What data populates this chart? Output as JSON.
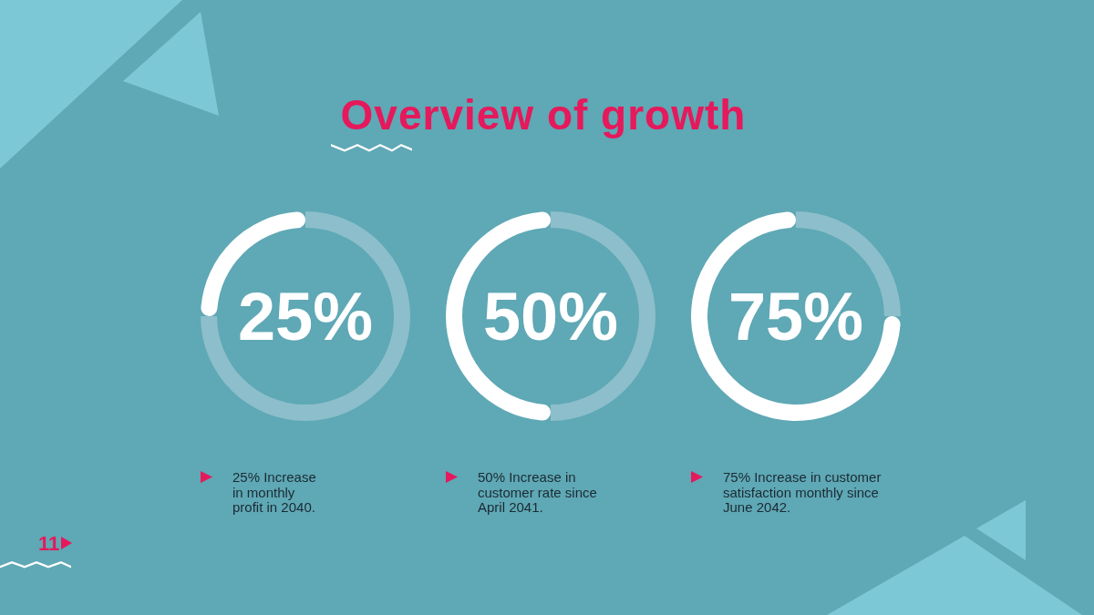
{
  "chart_data": [
    {
      "type": "donut",
      "title": "Overview of growth",
      "categories": [
        null,
        null
      ],
      "values": [
        25,
        75
      ],
      "colors": [
        "#ffffff",
        "#8cbfcb"
      ],
      "annotations": [
        "25%",
        "25% Increase in monthly profit in 2040.",
        "11"
      ]
    },
    {
      "type": "donut",
      "categories": [
        null,
        null
      ],
      "values": [
        50,
        50
      ],
      "colors": [
        "#ffffff",
        "#8cbfcb"
      ],
      "annotations": [
        "50%",
        "50% Increase in customer rate since April 2041."
      ]
    },
    {
      "type": "donut",
      "categories": [
        null,
        null
      ],
      "values": [
        75,
        25
      ],
      "colors": [
        "#ffffff",
        "#8cbfcb"
      ],
      "annotations": [
        "75%",
        "75% Increase in customer satisfaction monthly since June 2042."
      ]
    }
  ]
}
